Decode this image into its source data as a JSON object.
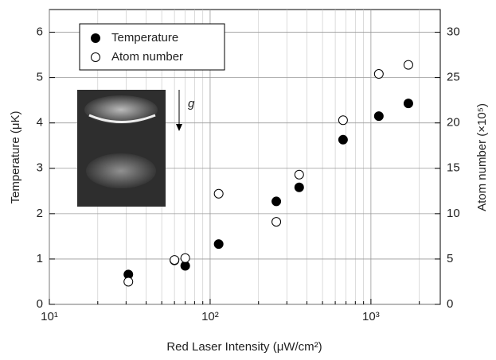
{
  "chart_data": {
    "type": "scatter",
    "xlabel": "Red Laser Intensity (μW/cm²)",
    "ylabel": "Temperature (μK)",
    "y2label": "Atom number (×10⁵)",
    "annotation": "g",
    "xscale": "log",
    "xlim": [
      10,
      2700
    ],
    "xticks": [
      {
        "value": 10,
        "label": "10¹"
      },
      {
        "value": 100,
        "label": "10²"
      },
      {
        "value": 1000,
        "label": "10³"
      }
    ],
    "ylim": [
      0,
      6.5
    ],
    "yticks": [
      0,
      1,
      2,
      3,
      4,
      5,
      6
    ],
    "y2lim": [
      0,
      32.5
    ],
    "y2ticks": [
      0,
      5,
      10,
      15,
      20,
      25,
      30
    ],
    "grid": true,
    "legend": "upper left",
    "series": [
      {
        "name": "Temperature",
        "color": "#000000",
        "fill": "filled",
        "x": [
          31,
          60,
          70,
          113,
          258,
          358,
          671,
          1120,
          1710
        ],
        "values": [
          0.66,
          0.97,
          0.85,
          1.33,
          2.27,
          2.58,
          3.63,
          4.15,
          4.43
        ]
      },
      {
        "name": "Atom number",
        "color": "#000000",
        "fill": "open",
        "axis": "y2",
        "x": [
          31,
          60,
          70,
          113,
          258,
          358,
          671,
          1120,
          1710
        ],
        "values": [
          2.5,
          4.9,
          5.1,
          12.2,
          9.1,
          14.3,
          20.3,
          25.4,
          26.4
        ]
      }
    ]
  }
}
